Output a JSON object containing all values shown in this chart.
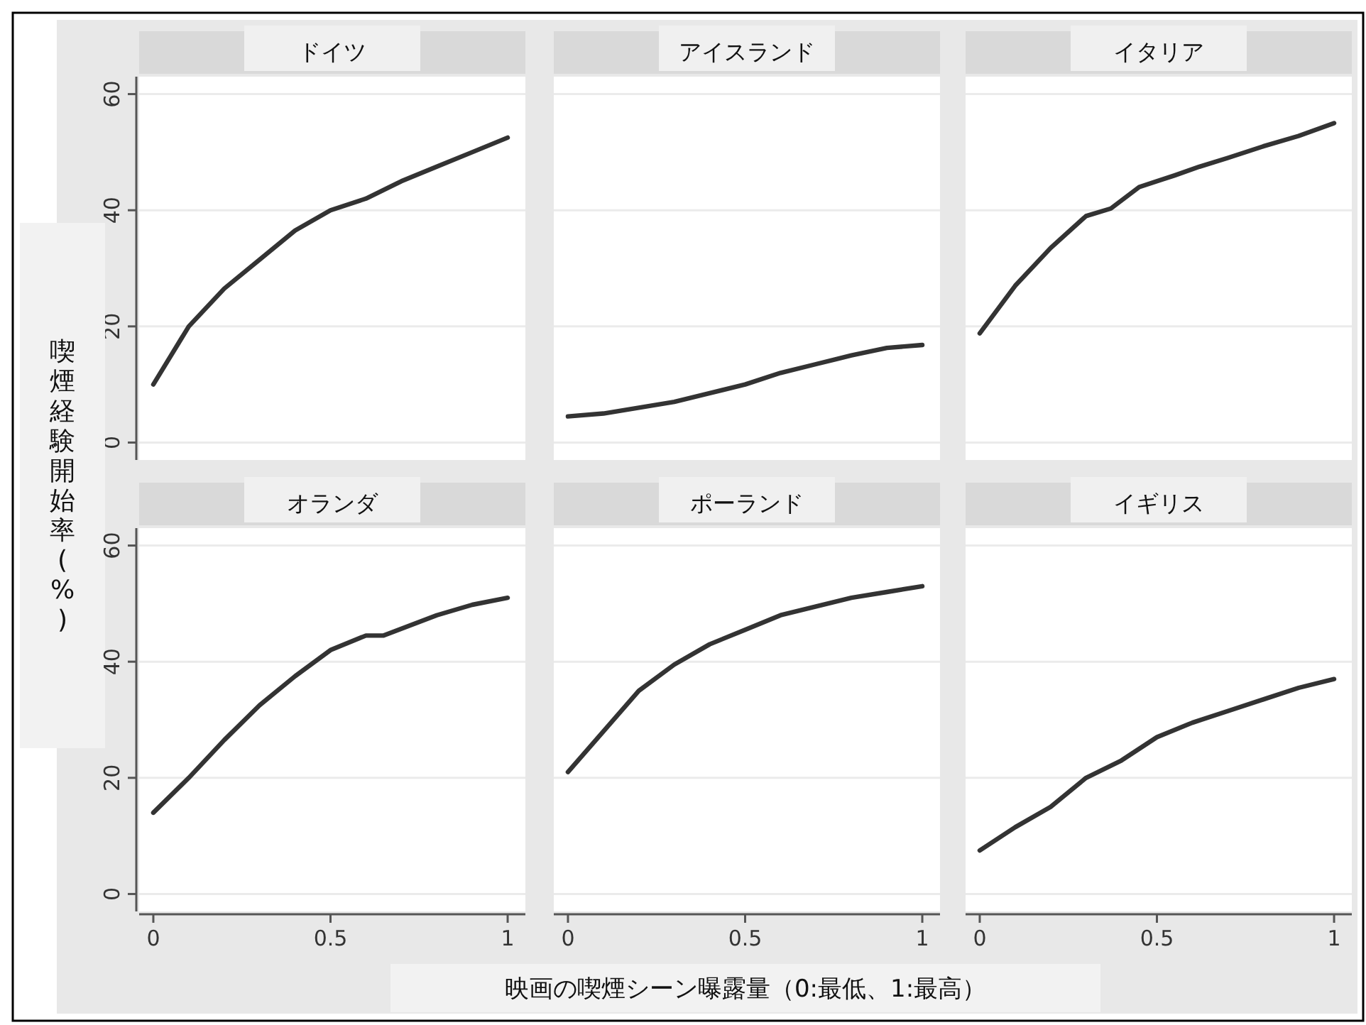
{
  "chart_data": [
    {
      "type": "line",
      "title": "ドイツ",
      "ylabel": "喫煙経験開始率(%)",
      "color": "#333333",
      "x": [
        0,
        0.1,
        0.2,
        0.3,
        0.4,
        0.5,
        0.6,
        0.7,
        0.8,
        0.9,
        1
      ],
      "values": [
        10,
        20,
        26.5,
        31.5,
        36.5,
        40,
        42,
        45,
        47.5,
        50,
        52.5
      ],
      "xlim": [
        -0.04,
        1.05
      ],
      "ylim": [
        -3,
        63
      ],
      "yticks": [
        0,
        20,
        40,
        60
      ],
      "grid": "y",
      "tick_labels": "y"
    },
    {
      "type": "line",
      "title": "アイスランド",
      "color": "#333333",
      "x": [
        0,
        0.1,
        0.2,
        0.3,
        0.4,
        0.5,
        0.6,
        0.7,
        0.8,
        0.9,
        1
      ],
      "values": [
        4.5,
        5,
        6,
        7,
        8.5,
        10,
        12,
        13.5,
        15,
        16.3,
        16.8
      ],
      "xlim": [
        -0.04,
        1.05
      ],
      "ylim": [
        -3,
        63
      ],
      "yticks": [
        0,
        20,
        40,
        60
      ],
      "grid": "y",
      "tick_labels": false
    },
    {
      "type": "line",
      "title": "イタリア",
      "color": "#333333",
      "x": [
        0,
        0.1,
        0.2,
        0.3,
        0.37,
        0.45,
        0.55,
        0.62,
        0.7,
        0.8,
        0.9,
        1
      ],
      "values": [
        18.8,
        27,
        33.5,
        39,
        40.3,
        44,
        46,
        47.5,
        49,
        51,
        52.8,
        55
      ],
      "xlim": [
        -0.04,
        1.05
      ],
      "ylim": [
        -3,
        63
      ],
      "yticks": [
        0,
        20,
        40,
        60
      ],
      "grid": "y",
      "tick_labels": false
    },
    {
      "type": "line",
      "title": "オランダ",
      "color": "#333333",
      "x": [
        0,
        0.1,
        0.2,
        0.3,
        0.4,
        0.5,
        0.6,
        0.65,
        0.8,
        0.9,
        1
      ],
      "values": [
        14,
        20,
        26.5,
        32.5,
        37.5,
        42,
        44.5,
        44.5,
        48,
        49.8,
        51
      ],
      "xlim": [
        -0.04,
        1.05
      ],
      "ylim": [
        -3,
        63
      ],
      "xticks": [
        0,
        0.5,
        1
      ],
      "yticks": [
        0,
        20,
        40,
        60
      ],
      "grid": "y"
    },
    {
      "type": "line",
      "title": "ポーランド",
      "xlabel": "映画の喫煙シーン曝露量（0:最低、1:最高）",
      "color": "#333333",
      "x": [
        0,
        0.1,
        0.2,
        0.3,
        0.4,
        0.5,
        0.6,
        0.7,
        0.8,
        0.9,
        1
      ],
      "values": [
        21,
        28,
        35,
        39.5,
        43,
        45.5,
        48,
        49.5,
        51,
        52,
        53
      ],
      "xlim": [
        -0.04,
        1.05
      ],
      "ylim": [
        -3,
        63
      ],
      "xticks": [
        0,
        0.5,
        1
      ],
      "yticks": [
        0,
        20,
        40,
        60
      ],
      "grid": "y",
      "tick_labels": "x"
    },
    {
      "type": "line",
      "title": "イギリス",
      "color": "#333333",
      "x": [
        0,
        0.1,
        0.2,
        0.3,
        0.4,
        0.5,
        0.6,
        0.7,
        0.8,
        0.9,
        1
      ],
      "values": [
        7.5,
        11.5,
        15,
        20,
        23,
        27,
        29.5,
        31.5,
        33.5,
        35.5,
        37
      ],
      "xlim": [
        -0.04,
        1.05
      ],
      "ylim": [
        -3,
        63
      ],
      "xticks": [
        0,
        0.5,
        1
      ],
      "yticks": [
        0,
        20,
        40,
        60
      ],
      "grid": "y",
      "tick_labels": "x"
    }
  ]
}
